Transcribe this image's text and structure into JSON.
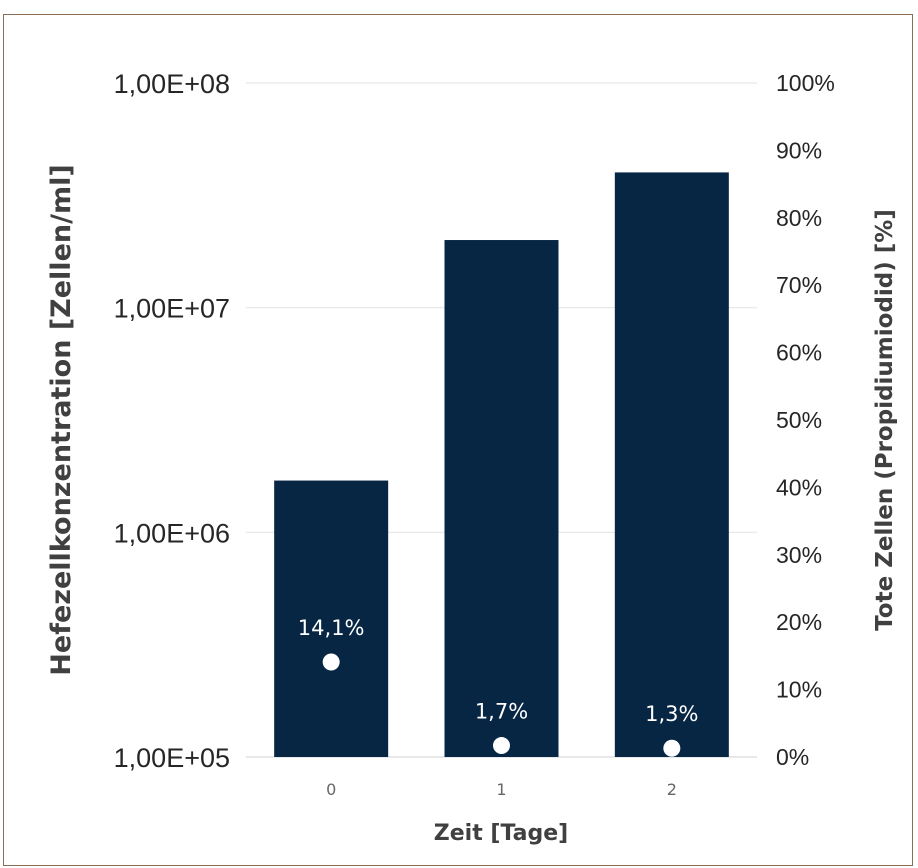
{
  "chart_data": {
    "type": "bar",
    "categories": [
      "0",
      "1",
      "2"
    ],
    "xlabel": "Zeit [Tage]",
    "ylabel": "Hefezellkonzentration [Zellen/ml]",
    "y2label": "Tote  Zellen (Propidiumiodid) [%]",
    "y_scale": "log",
    "ylim": [
      100000,
      100000000
    ],
    "yticks": [
      "1,00E+05",
      "1,00E+06",
      "1,00E+07",
      "1,00E+08"
    ],
    "y2lim": [
      0,
      100
    ],
    "y2ticks": [
      "0%",
      "10%",
      "20%",
      "30%",
      "40%",
      "50%",
      "60%",
      "70%",
      "80%",
      "90%",
      "100%"
    ],
    "grid": true,
    "series": [
      {
        "kind": "bar",
        "axis": "left",
        "color": "#062644",
        "values": [
          1700000,
          20000000,
          40000000
        ]
      },
      {
        "kind": "scatter",
        "axis": "right",
        "color": "#ffffff",
        "values": [
          14.1,
          1.7,
          1.3
        ],
        "labels": [
          "14,1%",
          "1,7%",
          "1,3%"
        ]
      }
    ]
  }
}
